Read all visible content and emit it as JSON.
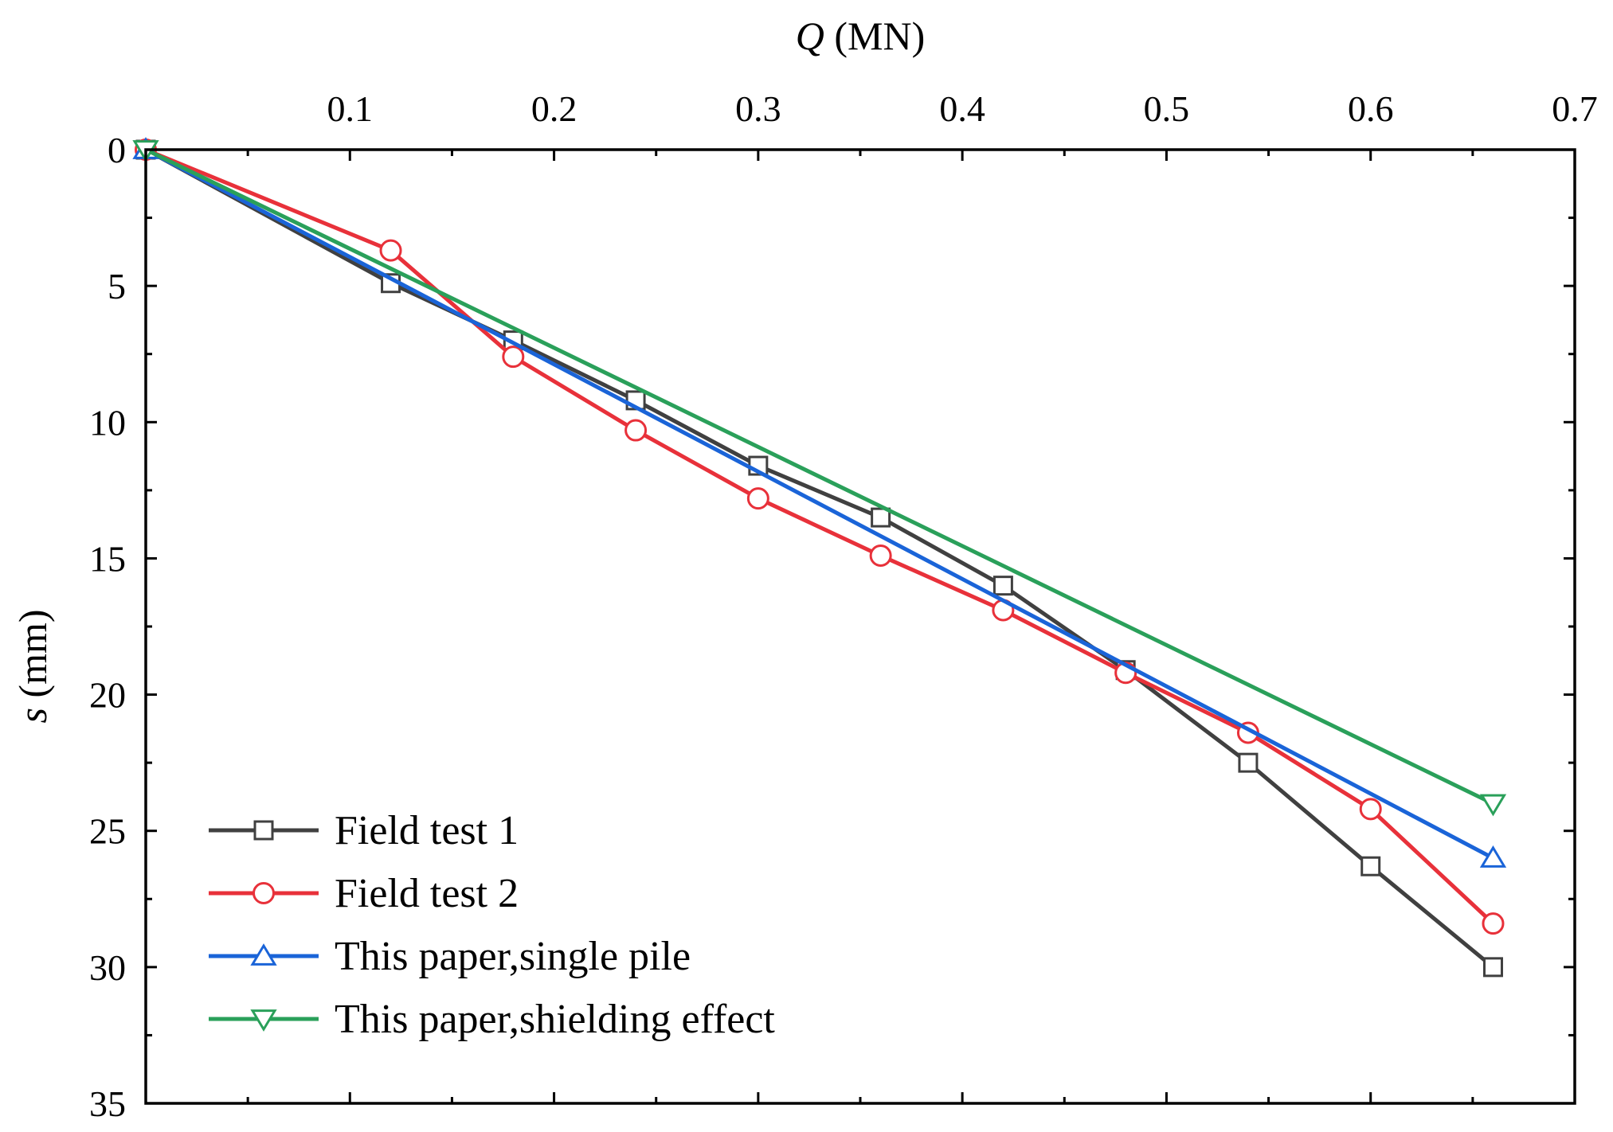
{
  "chart_data": {
    "type": "line",
    "xlabel": {
      "var": "Q",
      "unit": " (MN)"
    },
    "ylabel": {
      "var": "s",
      "unit": " (mm)"
    },
    "xlim": [
      0,
      0.7
    ],
    "ylim": [
      0,
      35
    ],
    "y_inverted": true,
    "x_axis_position": "top",
    "xticks": [
      0.1,
      0.2,
      0.3,
      0.4,
      0.5,
      0.6,
      0.7
    ],
    "xtick_labels": [
      "0.1",
      "0.2",
      "0.3",
      "0.4",
      "0.5",
      "0.6",
      "0.7"
    ],
    "yticks": [
      0,
      5,
      10,
      15,
      20,
      25,
      30,
      35
    ],
    "ytick_labels": [
      "0",
      "5",
      "10",
      "15",
      "20",
      "25",
      "30",
      "35"
    ],
    "grid": false,
    "legend_position": "bottom-left",
    "series": [
      {
        "name": "Field test 1",
        "color": "#404040",
        "marker": "square",
        "points": [
          [
            0,
            0
          ],
          [
            0.12,
            4.9
          ],
          [
            0.18,
            7.0
          ],
          [
            0.24,
            9.2
          ],
          [
            0.3,
            11.6
          ],
          [
            0.36,
            13.5
          ],
          [
            0.42,
            16.0
          ],
          [
            0.48,
            19.1
          ],
          [
            0.54,
            22.5
          ],
          [
            0.6,
            26.3
          ],
          [
            0.66,
            30.0
          ]
        ]
      },
      {
        "name": "Field test 2",
        "color": "#e8313a",
        "marker": "circle",
        "points": [
          [
            0,
            0
          ],
          [
            0.12,
            3.7
          ],
          [
            0.18,
            7.6
          ],
          [
            0.24,
            10.3
          ],
          [
            0.3,
            12.8
          ],
          [
            0.36,
            14.9
          ],
          [
            0.42,
            16.9
          ],
          [
            0.48,
            19.2
          ],
          [
            0.54,
            21.4
          ],
          [
            0.6,
            24.2
          ],
          [
            0.66,
            28.4
          ]
        ]
      },
      {
        "name": "This paper,single pile",
        "color": "#1a64d8",
        "marker": "triangle-up",
        "points": [
          [
            0,
            0
          ],
          [
            0.66,
            26.0
          ]
        ]
      },
      {
        "name": "This paper,shielding effect",
        "color": "#2aa05a",
        "marker": "triangle-down",
        "points": [
          [
            0,
            0
          ],
          [
            0.66,
            24.0
          ]
        ]
      }
    ]
  }
}
